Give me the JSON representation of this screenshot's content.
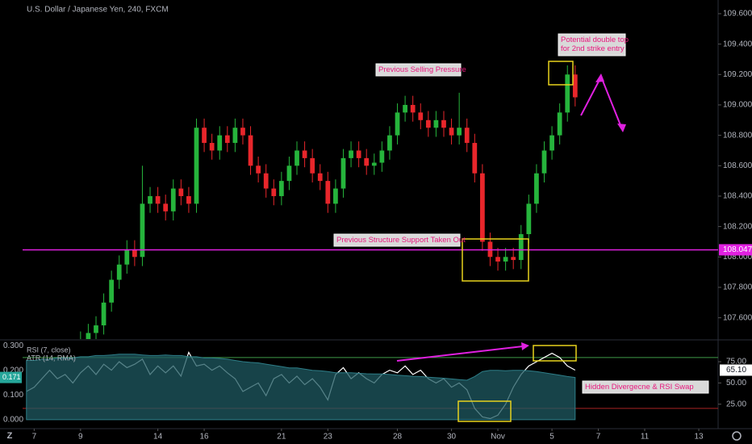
{
  "chart_data": [
    {
      "type": "candlestick",
      "title": "U.S. Dollar / Japanese Yen, 240, FXCM",
      "up_color": "#26b43c",
      "down_color": "#e8262b",
      "xlim": [
        -0.5,
        89.5
      ],
      "xticks": [
        {
          "value": 1,
          "label": "7"
        },
        {
          "value": 7,
          "label": "9"
        },
        {
          "value": 17,
          "label": "14"
        },
        {
          "value": 23,
          "label": "16"
        },
        {
          "value": 33,
          "label": "21"
        },
        {
          "value": 39,
          "label": "23"
        },
        {
          "value": 48,
          "label": "28"
        },
        {
          "value": 55,
          "label": "30"
        },
        {
          "value": 61,
          "label": "Nov"
        },
        {
          "value": 68,
          "label": "5"
        },
        {
          "value": 74,
          "label": "7"
        },
        {
          "value": 80,
          "label": "11"
        },
        {
          "value": 87,
          "label": "13"
        }
      ],
      "ylim": [
        107.46,
        109.69
      ],
      "yticks": [
        {
          "value": 107.6,
          "label": "107.600"
        },
        {
          "value": 107.8,
          "label": "107.800"
        },
        {
          "value": 108.0,
          "label": "108.000"
        },
        {
          "value": 108.2,
          "label": "108.200"
        },
        {
          "value": 108.4,
          "label": "108.400"
        },
        {
          "value": 108.6,
          "label": "108.600"
        },
        {
          "value": 108.8,
          "label": "108.800"
        },
        {
          "value": 109.0,
          "label": "109.000"
        },
        {
          "value": 109.2,
          "label": "109.200"
        },
        {
          "value": 109.4,
          "label": "109.400"
        },
        {
          "value": 109.6,
          "label": "109.600"
        }
      ],
      "open": [
        107.15,
        107.2,
        107.25,
        107.3,
        107.28,
        107.35,
        107.32,
        107.4,
        107.45,
        107.5,
        107.55,
        107.7,
        107.85,
        107.95,
        108.05,
        108.0,
        108.35,
        108.4,
        108.35,
        108.3,
        108.45,
        108.4,
        108.35,
        108.85,
        108.75,
        108.7,
        108.8,
        108.75,
        108.85,
        108.8,
        108.6,
        108.55,
        108.45,
        108.4,
        108.5,
        108.6,
        108.7,
        108.65,
        108.55,
        108.5,
        108.35,
        108.45,
        108.65,
        108.7,
        108.65,
        108.6,
        108.62,
        108.7,
        108.8,
        108.95,
        109.0,
        108.95,
        108.9,
        108.85,
        108.9,
        108.85,
        108.8,
        108.85,
        108.75,
        108.55,
        108.1,
        108.0,
        107.97,
        108.0,
        107.98,
        108.15,
        108.35,
        108.55,
        108.7,
        108.8,
        108.95,
        109.2
      ],
      "high": [
        107.26,
        107.31,
        107.36,
        107.36,
        107.41,
        107.41,
        107.46,
        107.51,
        107.56,
        107.61,
        107.76,
        107.91,
        108.01,
        108.11,
        108.11,
        108.6,
        108.46,
        108.46,
        108.41,
        108.51,
        108.51,
        108.46,
        108.91,
        108.91,
        108.81,
        108.86,
        108.86,
        108.91,
        108.91,
        108.86,
        108.66,
        108.61,
        108.51,
        108.56,
        108.66,
        108.76,
        108.76,
        108.71,
        108.61,
        108.56,
        108.51,
        108.71,
        108.76,
        108.76,
        108.71,
        108.68,
        108.76,
        108.86,
        109.01,
        109.06,
        109.06,
        109.01,
        108.96,
        108.96,
        108.96,
        108.91,
        109.08,
        108.91,
        108.81,
        108.61,
        108.16,
        108.06,
        108.06,
        108.06,
        108.21,
        108.41,
        108.61,
        108.76,
        108.86,
        109.01,
        109.26,
        109.26
      ],
      "low": [
        107.09,
        107.14,
        107.19,
        107.22,
        107.22,
        107.26,
        107.26,
        107.34,
        107.39,
        107.44,
        107.49,
        107.64,
        107.79,
        107.89,
        107.94,
        107.94,
        108.29,
        108.29,
        108.24,
        108.24,
        108.34,
        108.29,
        108.29,
        108.69,
        108.64,
        108.64,
        108.69,
        108.69,
        108.74,
        108.54,
        108.49,
        108.39,
        108.34,
        108.34,
        108.44,
        108.54,
        108.59,
        108.49,
        108.44,
        108.29,
        108.29,
        108.39,
        108.59,
        108.59,
        108.54,
        108.54,
        108.56,
        108.64,
        108.74,
        108.89,
        108.89,
        108.84,
        108.79,
        108.79,
        108.79,
        108.74,
        108.74,
        108.69,
        108.49,
        108.04,
        107.94,
        107.91,
        107.91,
        107.92,
        107.92,
        108.09,
        108.29,
        108.49,
        108.64,
        108.74,
        108.89,
        108.99
      ],
      "close": [
        107.2,
        107.25,
        107.3,
        107.28,
        107.35,
        107.32,
        107.4,
        107.45,
        107.5,
        107.55,
        107.7,
        107.85,
        107.95,
        108.05,
        108.0,
        108.35,
        108.4,
        108.35,
        108.3,
        108.45,
        108.4,
        108.35,
        108.85,
        108.75,
        108.7,
        108.8,
        108.75,
        108.85,
        108.8,
        108.6,
        108.55,
        108.45,
        108.4,
        108.5,
        108.6,
        108.7,
        108.65,
        108.55,
        108.5,
        108.35,
        108.45,
        108.65,
        108.7,
        108.65,
        108.6,
        108.62,
        108.7,
        108.8,
        108.95,
        109.0,
        108.95,
        108.9,
        108.85,
        108.9,
        108.85,
        108.8,
        108.85,
        108.75,
        108.55,
        108.1,
        108.0,
        107.97,
        108.0,
        107.98,
        108.15,
        108.35,
        108.55,
        108.7,
        108.8,
        108.95,
        109.2,
        109.05
      ],
      "hlines": [
        {
          "value": 108.047,
          "color": "#e020e0"
        }
      ],
      "annotations": [
        {
          "lines": [
            "Previous Selling Pressure"
          ]
        },
        {
          "lines": [
            "Potential double top",
            "for 2nd strike entry"
          ]
        },
        {
          "lines": [
            "Previous Structure Support Taken Out"
          ]
        },
        {
          "lines": [
            "Hidden Divergecne & RSI Swap"
          ]
        }
      ]
    },
    {
      "type": "line",
      "ylim": [
        -0.033,
        0.32
      ],
      "yticks": [
        {
          "value": 0,
          "label": "0.000"
        },
        {
          "value": 0.1,
          "label": "0.100"
        },
        {
          "value": 0.2,
          "label": "0.200"
        },
        {
          "value": 0.3,
          "label": "0.300"
        }
      ],
      "y2lim": [
        -2.9,
        99.8
      ],
      "y2ticks": [
        {
          "value": 25,
          "label": "25.00"
        },
        {
          "value": 50,
          "label": "50.00"
        },
        {
          "value": 75,
          "label": "75.00"
        }
      ],
      "levels": [
        {
          "value": 80,
          "color": "#3f9a48"
        },
        {
          "value": 20,
          "color": "#a82424"
        }
      ],
      "series": [
        {
          "name": "RSI (7, close)",
          "color": "#ffffff",
          "axis": "y2",
          "last_label": "65.10",
          "values": [
            40,
            45,
            55,
            65,
            55,
            60,
            50,
            62,
            70,
            60,
            72,
            65,
            75,
            68,
            72,
            78,
            60,
            70,
            62,
            70,
            58,
            86,
            70,
            72,
            65,
            70,
            62,
            55,
            40,
            45,
            50,
            35,
            55,
            60,
            50,
            58,
            48,
            55,
            45,
            30,
            60,
            68,
            55,
            62,
            55,
            50,
            60,
            65,
            62,
            70,
            60,
            65,
            55,
            50,
            55,
            45,
            50,
            42,
            20,
            10,
            8,
            12,
            25,
            45,
            60,
            70,
            75,
            80,
            85,
            80,
            70,
            65.1
          ]
        },
        {
          "name": "ATR (14, RMA)",
          "color": "#1f5a61",
          "style": "area",
          "last_label": "0.171",
          "values": [
            0.24,
            0.24,
            0.245,
            0.245,
            0.25,
            0.25,
            0.25,
            0.255,
            0.255,
            0.26,
            0.26,
            0.262,
            0.265,
            0.265,
            0.265,
            0.262,
            0.26,
            0.26,
            0.262,
            0.26,
            0.26,
            0.255,
            0.255,
            0.25,
            0.25,
            0.248,
            0.245,
            0.24,
            0.235,
            0.232,
            0.23,
            0.225,
            0.22,
            0.215,
            0.21,
            0.21,
            0.205,
            0.2,
            0.198,
            0.195,
            0.19,
            0.19,
            0.19,
            0.188,
            0.186,
            0.185,
            0.185,
            0.183,
            0.18,
            0.178,
            0.176,
            0.175,
            0.172,
            0.17,
            0.168,
            0.165,
            0.162,
            0.16,
            0.175,
            0.195,
            0.2,
            0.2,
            0.198,
            0.2,
            0.2,
            0.198,
            0.195,
            0.19,
            0.185,
            0.18,
            0.175,
            0.171
          ]
        }
      ]
    }
  ]
}
